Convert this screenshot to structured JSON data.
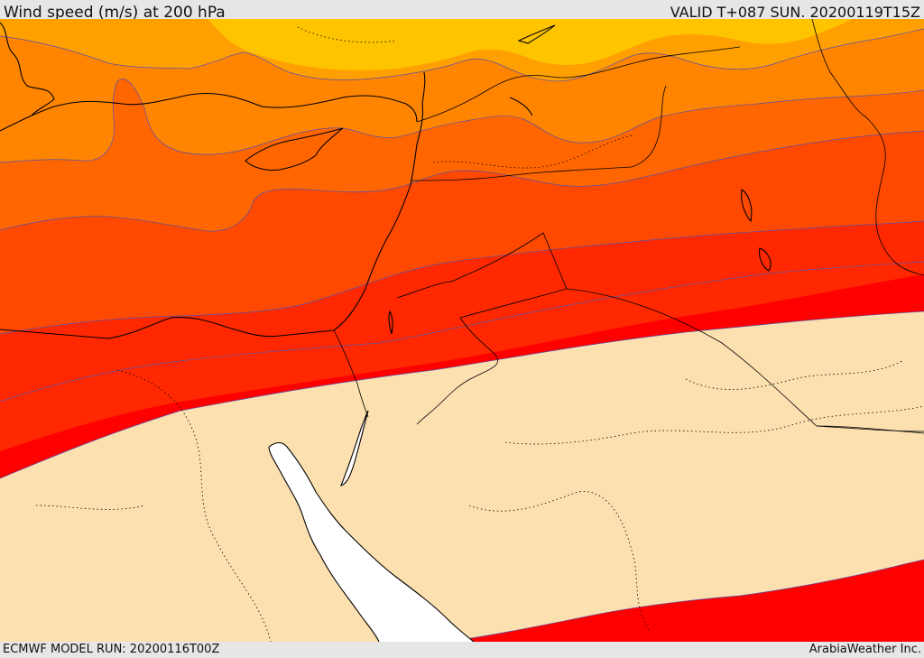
{
  "header": {
    "title": "Wind speed (m/s) at 200 hPa",
    "valid": "VALID T+087 SUN. 20200119T15Z"
  },
  "footer": {
    "model_run": "ECMWF MODEL RUN: 20200116T00Z",
    "credit": "ArabiaWeather Inc."
  },
  "colors": {
    "band_1": "#ffc400",
    "band_2": "#ffa000",
    "band_3": "#ff8400",
    "band_4": "#ff6600",
    "band_5": "#ff4800",
    "band_6": "#ff2800",
    "band_7": "#ff0000",
    "background_land": "#fde0b0",
    "sea": "#ffffff",
    "coastline": "#000000",
    "contour": "#5a50a8"
  }
}
